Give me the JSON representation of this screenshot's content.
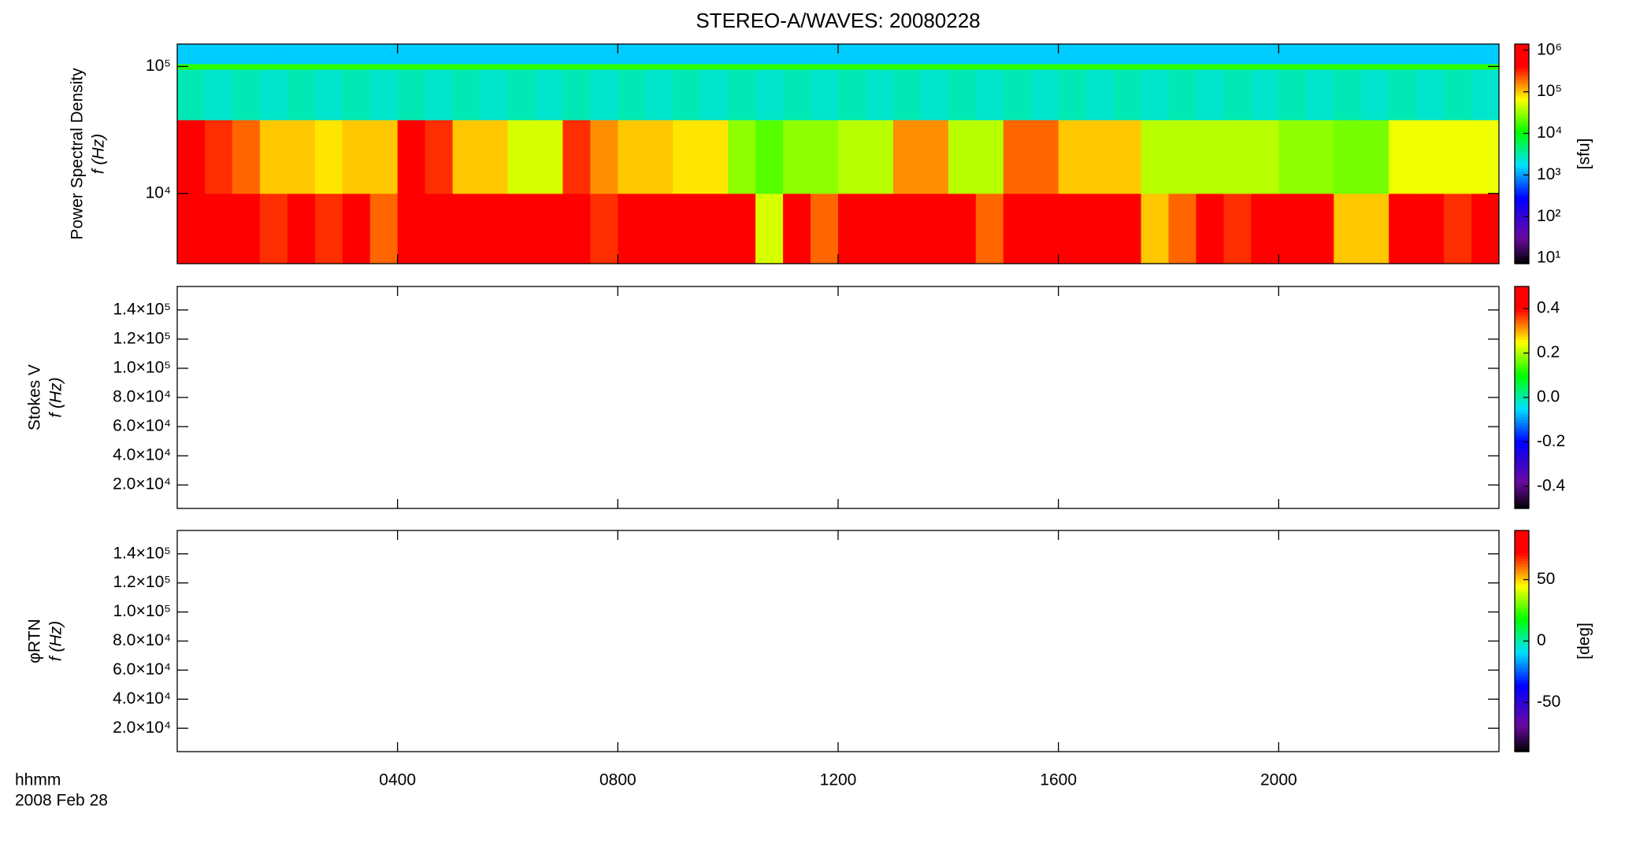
{
  "title": "STEREO-A/WAVES: 20080228",
  "x_axis": {
    "label": "hhmm",
    "date": "2008 Feb 28",
    "xlim": [
      0,
      24
    ],
    "xticks": [
      {
        "value": 4,
        "label": "0400"
      },
      {
        "value": 8,
        "label": "0800"
      },
      {
        "value": 12,
        "label": "1200"
      },
      {
        "value": 16,
        "label": "1600"
      },
      {
        "value": 20,
        "label": "2000"
      }
    ]
  },
  "chart_data": [
    {
      "type": "heatmap",
      "ylabel": [
        "Power Spectral Density",
        "f (Hz)"
      ],
      "log_y": true,
      "colormap": "rainbow",
      "ylim": [
        2800,
        150000
      ],
      "yticks": [
        {
          "value": 10000,
          "label": "10⁴"
        },
        {
          "value": 100000,
          "label": "10⁵"
        }
      ],
      "x_bins": [
        0,
        0.5,
        1,
        1.5,
        2,
        2.5,
        3,
        3.5,
        4,
        4.5,
        5,
        5.5,
        6,
        6.5,
        7,
        7.5,
        8,
        8.5,
        9,
        9.5,
        10,
        10.5,
        11,
        11.5,
        12,
        12.5,
        13,
        13.5,
        14,
        14.5,
        15,
        15.5,
        16,
        16.5,
        17,
        17.5,
        18,
        18.5,
        19,
        19.5,
        20,
        20.5,
        21,
        21.5,
        22,
        22.5,
        23,
        23.5,
        24
      ],
      "y_bins": [
        2800,
        10000,
        38000,
        95000,
        105000,
        150000
      ],
      "z": [
        [
          1000000,
          1000000,
          1000000,
          300000,
          1000000,
          300000,
          1000000,
          200000,
          1000000,
          1000000,
          1000000,
          1000000,
          1000000,
          1000000,
          1000000,
          300000,
          1000000,
          1000000,
          1000000,
          1000000,
          1000000,
          50000,
          1000000,
          200000,
          1000000,
          1000000,
          1000000,
          1000000,
          1000000,
          200000,
          1000000,
          1000000,
          1000000,
          1000000,
          1000000,
          100000,
          200000,
          1000000,
          300000,
          1000000,
          1000000,
          1000000,
          100000,
          100000,
          1000000,
          1000000,
          300000,
          1000000
        ],
        [
          500000,
          300000,
          200000,
          100000,
          100000,
          80000,
          100000,
          100000,
          500000,
          300000,
          100000,
          100000,
          50000,
          50000,
          300000,
          150000,
          100000,
          100000,
          80000,
          80000,
          30000,
          20000,
          30000,
          30000,
          40000,
          40000,
          150000,
          150000,
          40000,
          40000,
          200000,
          200000,
          100000,
          100000,
          100000,
          40000,
          40000,
          40000,
          40000,
          40000,
          30000,
          30000,
          25000,
          25000,
          60000,
          60000,
          60000,
          60000
        ],
        [
          3000,
          2500,
          3000,
          2500,
          3000,
          2500,
          3000,
          2500,
          3000,
          2500,
          3000,
          2500,
          3000,
          2500,
          3000,
          2500,
          3000,
          2500,
          3000,
          2500,
          3000,
          2500,
          3000,
          2500,
          3000,
          2500,
          3000,
          2500,
          3000,
          2500,
          3000,
          2500,
          3000,
          2500,
          3000,
          2500,
          3000,
          2500,
          3000,
          2500,
          3000,
          2500,
          3000,
          2500,
          3000,
          2500,
          3000,
          2500
        ],
        [
          15000,
          15000,
          15000,
          15000,
          15000,
          15000,
          15000,
          15000,
          15000,
          15000,
          15000,
          15000,
          15000,
          15000,
          15000,
          15000,
          15000,
          15000,
          15000,
          15000,
          15000,
          15000,
          15000,
          15000,
          15000,
          15000,
          15000,
          15000,
          15000,
          15000,
          15000,
          15000,
          15000,
          15000,
          15000,
          15000,
          15000,
          15000,
          15000,
          15000,
          15000,
          15000,
          15000,
          15000,
          15000,
          15000,
          15000,
          15000
        ],
        [
          1500,
          1500,
          1500,
          1500,
          1500,
          1500,
          1500,
          1500,
          1500,
          1500,
          1500,
          1500,
          1500,
          1500,
          1500,
          1500,
          1500,
          1500,
          1500,
          1500,
          1500,
          1500,
          1500,
          1500,
          1500,
          1500,
          1500,
          1500,
          1500,
          1500,
          1500,
          1500,
          1500,
          1500,
          1500,
          1500,
          1500,
          1500,
          1500,
          1500,
          1500,
          1500,
          1500,
          1500,
          1500,
          1500,
          1500,
          1500
        ]
      ],
      "colorbar": {
        "log": true,
        "label": "[sfu]",
        "ylim": [
          7.4,
          1400000
        ],
        "yticks": [
          {
            "value": 10,
            "label": "10¹"
          },
          {
            "value": 100,
            "label": "10²"
          },
          {
            "value": 1000,
            "label": "10³"
          },
          {
            "value": 10000,
            "label": "10⁴"
          },
          {
            "value": 100000,
            "label": "10⁵"
          },
          {
            "value": 1000000,
            "label": "10⁶"
          }
        ]
      }
    },
    {
      "type": "heatmap",
      "ylabel": [
        "Stokes V",
        "f (Hz)"
      ],
      "log_y": false,
      "colormap": "rainbow",
      "ylim": [
        3900,
        156100
      ],
      "yticks": [
        {
          "value": 20000,
          "label": "2.0×10⁴"
        },
        {
          "value": 40000,
          "label": "4.0×10⁴"
        },
        {
          "value": 60000,
          "label": "6.0×10⁴"
        },
        {
          "value": 80000,
          "label": "8.0×10⁴"
        },
        {
          "value": 100000,
          "label": "1.0×10⁵"
        },
        {
          "value": 120000,
          "label": "1.2×10⁵"
        },
        {
          "value": 140000,
          "label": "1.4×10⁵"
        }
      ],
      "colorbar": {
        "log": false,
        "ylim": [
          -0.5,
          0.5
        ],
        "yticks": [
          -0.4,
          -0.2,
          {
            "value": 0,
            "label": "0.0"
          },
          0.2,
          0.4
        ]
      }
    },
    {
      "type": "heatmap",
      "ylabel": [
        "φRTN",
        "f (Hz)"
      ],
      "log_y": false,
      "colormap": "rainbow",
      "ylim": [
        3900,
        156100
      ],
      "yticks": [
        {
          "value": 20000,
          "label": "2.0×10⁴"
        },
        {
          "value": 40000,
          "label": "4.0×10⁴"
        },
        {
          "value": 60000,
          "label": "6.0×10⁴"
        },
        {
          "value": 80000,
          "label": "8.0×10⁴"
        },
        {
          "value": 100000,
          "label": "1.0×10⁵"
        },
        {
          "value": 120000,
          "label": "1.2×10⁵"
        },
        {
          "value": 140000,
          "label": "1.4×10⁵"
        }
      ],
      "colorbar": {
        "log": false,
        "label": "[deg]",
        "ylim": [
          -90,
          90
        ],
        "yticks": [
          -50,
          0,
          50
        ]
      }
    }
  ]
}
